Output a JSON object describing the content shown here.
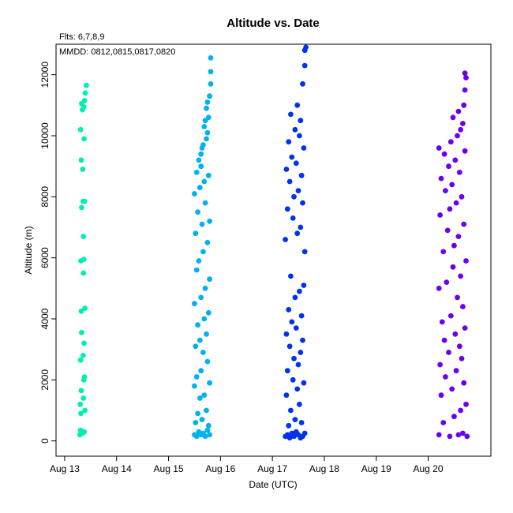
{
  "header": {
    "title": "Altitude  vs. Date",
    "flts_note": "Flts: 6,7,8,9",
    "mmdd_note": "MMDD: 0812,0815,0817,0820"
  },
  "chart_data": {
    "type": "scatter",
    "title": "Altitude  vs. Date",
    "xlabel": "Date (UTC)",
    "ylabel": "Altitude (m)",
    "xlim": [
      "2014-08-12T20:00",
      "2014-08-21T05:00"
    ],
    "ylim": [
      -500,
      13000
    ],
    "x_ticks": [
      "Aug 13",
      "Aug 14",
      "Aug 15",
      "Aug 16",
      "Aug 17",
      "Aug 18",
      "Aug 19",
      "Aug 20"
    ],
    "y_ticks": [
      0,
      2000,
      4000,
      6000,
      8000,
      10000,
      12000
    ],
    "grid": false,
    "series": [
      {
        "color": "#00eeb4",
        "points": [
          [
            "2014-08-13T07:00",
            200
          ],
          [
            "2014-08-13T07:20",
            350
          ],
          [
            "2014-08-13T08:10",
            250
          ],
          [
            "2014-08-13T09:00",
            300
          ],
          [
            "2014-08-13T07:30",
            900
          ],
          [
            "2014-08-13T07:10",
            1200
          ],
          [
            "2014-08-13T07:40",
            1650
          ],
          [
            "2014-08-13T08:40",
            1400
          ],
          [
            "2014-08-13T09:20",
            1000
          ],
          [
            "2014-08-13T08:50",
            2000
          ],
          [
            "2014-08-13T09:10",
            2100
          ],
          [
            "2014-08-13T07:20",
            2650
          ],
          [
            "2014-08-13T08:30",
            2800
          ],
          [
            "2014-08-13T09:00",
            3200
          ],
          [
            "2014-08-13T07:50",
            3550
          ],
          [
            "2014-08-13T07:40",
            4250
          ],
          [
            "2014-08-13T09:20",
            4350
          ],
          [
            "2014-08-13T08:40",
            5500
          ],
          [
            "2014-08-13T07:30",
            5900
          ],
          [
            "2014-08-13T08:50",
            5950
          ],
          [
            "2014-08-13T08:40",
            6700
          ],
          [
            "2014-08-13T07:50",
            7650
          ],
          [
            "2014-08-13T08:30",
            7850
          ],
          [
            "2014-08-13T09:10",
            7850
          ],
          [
            "2014-08-13T08:20",
            8900
          ],
          [
            "2014-08-13T07:40",
            9200
          ],
          [
            "2014-08-13T09:00",
            9900
          ],
          [
            "2014-08-13T07:20",
            10200
          ],
          [
            "2014-08-13T08:10",
            10850
          ],
          [
            "2014-08-13T08:50",
            10950
          ],
          [
            "2014-08-13T07:50",
            11050
          ],
          [
            "2014-08-13T09:30",
            11400
          ],
          [
            "2014-08-13T10:00",
            11650
          ],
          [
            "2014-08-13T09:10",
            11150
          ]
        ]
      },
      {
        "color": "#00b2ee",
        "points": [
          [
            "2014-08-15T12:00",
            200
          ],
          [
            "2014-08-15T13:00",
            150
          ],
          [
            "2014-08-15T14:00",
            300
          ],
          [
            "2014-08-15T15:00",
            200
          ],
          [
            "2014-08-15T16:00",
            250
          ],
          [
            "2014-08-15T17:00",
            150
          ],
          [
            "2014-08-15T18:00",
            350
          ],
          [
            "2014-08-15T19:00",
            200
          ],
          [
            "2014-08-15T12:30",
            600
          ],
          [
            "2014-08-15T15:30",
            700
          ],
          [
            "2014-08-15T18:30",
            500
          ],
          [
            "2014-08-15T13:30",
            900
          ],
          [
            "2014-08-15T17:30",
            1000
          ],
          [
            "2014-08-15T14:30",
            1400
          ],
          [
            "2014-08-15T16:30",
            1500
          ],
          [
            "2014-08-15T12:00",
            1800
          ],
          [
            "2014-08-15T19:00",
            1900
          ],
          [
            "2014-08-15T13:00",
            2100
          ],
          [
            "2014-08-15T15:00",
            2300
          ],
          [
            "2014-08-15T18:00",
            2600
          ],
          [
            "2014-08-15T16:00",
            2900
          ],
          [
            "2014-08-15T12:30",
            3100
          ],
          [
            "2014-08-15T14:30",
            3300
          ],
          [
            "2014-08-15T17:30",
            3500
          ],
          [
            "2014-08-15T13:30",
            3800
          ],
          [
            "2014-08-15T16:30",
            4000
          ],
          [
            "2014-08-15T18:30",
            4200
          ],
          [
            "2014-08-15T12:00",
            4500
          ],
          [
            "2014-08-15T15:00",
            4700
          ],
          [
            "2014-08-15T17:00",
            5000
          ],
          [
            "2014-08-15T19:00",
            5300
          ],
          [
            "2014-08-15T13:00",
            5600
          ],
          [
            "2014-08-15T14:00",
            5900
          ],
          [
            "2014-08-15T16:00",
            6200
          ],
          [
            "2014-08-15T18:00",
            6500
          ],
          [
            "2014-08-15T12:30",
            6800
          ],
          [
            "2014-08-15T15:30",
            7100
          ],
          [
            "2014-08-15T19:00",
            7200
          ],
          [
            "2014-08-15T13:30",
            7500
          ],
          [
            "2014-08-15T17:00",
            7800
          ],
          [
            "2014-08-15T12:00",
            8100
          ],
          [
            "2014-08-15T14:30",
            8300
          ],
          [
            "2014-08-15T16:30",
            8500
          ],
          [
            "2014-08-15T18:30",
            8700
          ],
          [
            "2014-08-15T13:00",
            8800
          ],
          [
            "2014-08-15T15:00",
            9000
          ],
          [
            "2014-08-15T14:00",
            9200
          ],
          [
            "2014-08-15T15:00",
            9400
          ],
          [
            "2014-08-15T15:30",
            9600
          ],
          [
            "2014-08-15T16:00",
            9700
          ],
          [
            "2014-08-15T17:30",
            9900
          ],
          [
            "2014-08-15T18:00",
            10100
          ],
          [
            "2014-08-15T16:30",
            10300
          ],
          [
            "2014-08-15T17:00",
            10500
          ],
          [
            "2014-08-15T18:30",
            10600
          ],
          [
            "2014-08-15T17:30",
            10900
          ],
          [
            "2014-08-15T18:00",
            11100
          ],
          [
            "2014-08-15T19:00",
            11300
          ],
          [
            "2014-08-15T19:30",
            11700
          ],
          [
            "2014-08-15T19:30",
            12100
          ],
          [
            "2014-08-15T19:30",
            12550
          ]
        ]
      },
      {
        "color": "#0033ee",
        "points": [
          [
            "2014-08-17T06:00",
            150
          ],
          [
            "2014-08-17T07:00",
            200
          ],
          [
            "2014-08-17T08:00",
            100
          ],
          [
            "2014-08-17T09:00",
            250
          ],
          [
            "2014-08-17T10:00",
            150
          ],
          [
            "2014-08-17T11:00",
            300
          ],
          [
            "2014-08-17T12:00",
            200
          ],
          [
            "2014-08-17T13:00",
            100
          ],
          [
            "2014-08-17T14:00",
            150
          ],
          [
            "2014-08-17T15:00",
            250
          ],
          [
            "2014-08-17T07:30",
            500
          ],
          [
            "2014-08-17T10:30",
            700
          ],
          [
            "2014-08-17T13:30",
            600
          ],
          [
            "2014-08-17T08:30",
            1000
          ],
          [
            "2014-08-17T12:30",
            1200
          ],
          [
            "2014-08-17T06:30",
            1500
          ],
          [
            "2014-08-17T11:30",
            1700
          ],
          [
            "2014-08-17T14:30",
            1900
          ],
          [
            "2014-08-17T09:30",
            2000
          ],
          [
            "2014-08-17T07:00",
            2300
          ],
          [
            "2014-08-17T12:00",
            2500
          ],
          [
            "2014-08-17T10:00",
            2700
          ],
          [
            "2014-08-17T13:00",
            2900
          ],
          [
            "2014-08-17T08:00",
            3100
          ],
          [
            "2014-08-17T14:00",
            3300
          ],
          [
            "2014-08-17T06:30",
            3500
          ],
          [
            "2014-08-17T11:00",
            3700
          ],
          [
            "2014-08-17T09:00",
            3900
          ],
          [
            "2014-08-17T13:30",
            4100
          ],
          [
            "2014-08-17T07:30",
            4300
          ],
          [
            "2014-08-17T10:30",
            4700
          ],
          [
            "2014-08-17T12:30",
            4900
          ],
          [
            "2014-08-17T14:30",
            5100
          ],
          [
            "2014-08-17T08:30",
            5400
          ],
          [
            "2014-08-17T15:00",
            6200
          ],
          [
            "2014-08-17T06:00",
            6600
          ],
          [
            "2014-08-17T11:30",
            6800
          ],
          [
            "2014-08-17T13:00",
            7000
          ],
          [
            "2014-08-17T09:30",
            7300
          ],
          [
            "2014-08-17T07:00",
            7600
          ],
          [
            "2014-08-17T14:00",
            7800
          ],
          [
            "2014-08-17T10:00",
            8000
          ],
          [
            "2014-08-17T12:00",
            8200
          ],
          [
            "2014-08-17T08:00",
            8500
          ],
          [
            "2014-08-17T13:30",
            8700
          ],
          [
            "2014-08-17T06:30",
            8900
          ],
          [
            "2014-08-17T11:00",
            9100
          ],
          [
            "2014-08-17T09:00",
            9300
          ],
          [
            "2014-08-17T14:30",
            9600
          ],
          [
            "2014-08-17T07:30",
            9800
          ],
          [
            "2014-08-17T12:30",
            10000
          ],
          [
            "2014-08-17T10:30",
            10200
          ],
          [
            "2014-08-17T13:00",
            10500
          ],
          [
            "2014-08-17T08:30",
            10700
          ],
          [
            "2014-08-17T11:30",
            11000
          ],
          [
            "2014-08-17T14:00",
            11700
          ],
          [
            "2014-08-17T15:00",
            12300
          ],
          [
            "2014-08-17T15:00",
            12800
          ],
          [
            "2014-08-17T15:30",
            12900
          ]
        ]
      },
      {
        "color": "#6b00ee",
        "points": [
          [
            "2014-08-20T05:00",
            200
          ],
          [
            "2014-08-20T10:00",
            150
          ],
          [
            "2014-08-20T14:00",
            200
          ],
          [
            "2014-08-20T16:00",
            250
          ],
          [
            "2014-08-20T18:00",
            150
          ],
          [
            "2014-08-20T07:00",
            600
          ],
          [
            "2014-08-20T12:00",
            800
          ],
          [
            "2014-08-20T15:00",
            1000
          ],
          [
            "2014-08-20T17:30",
            1200
          ],
          [
            "2014-08-20T06:00",
            1500
          ],
          [
            "2014-08-20T11:00",
            1700
          ],
          [
            "2014-08-20T16:30",
            1900
          ],
          [
            "2014-08-20T08:00",
            2100
          ],
          [
            "2014-08-20T13:00",
            2300
          ],
          [
            "2014-08-20T05:30",
            2500
          ],
          [
            "2014-08-20T15:30",
            2700
          ],
          [
            "2014-08-20T09:30",
            2900
          ],
          [
            "2014-08-20T14:30",
            3100
          ],
          [
            "2014-08-20T07:30",
            3300
          ],
          [
            "2014-08-20T12:30",
            3500
          ],
          [
            "2014-08-20T17:00",
            3700
          ],
          [
            "2014-08-20T06:30",
            3900
          ],
          [
            "2014-08-20T10:30",
            4100
          ],
          [
            "2014-08-20T16:00",
            4400
          ],
          [
            "2014-08-20T13:30",
            4700
          ],
          [
            "2014-08-20T05:00",
            5000
          ],
          [
            "2014-08-20T08:30",
            5200
          ],
          [
            "2014-08-20T15:00",
            5400
          ],
          [
            "2014-08-20T11:30",
            5700
          ],
          [
            "2014-08-20T17:30",
            5900
          ],
          [
            "2014-08-20T07:00",
            6200
          ],
          [
            "2014-08-20T12:00",
            6400
          ],
          [
            "2014-08-20T14:00",
            6700
          ],
          [
            "2014-08-20T09:00",
            6900
          ],
          [
            "2014-08-20T16:30",
            7100
          ],
          [
            "2014-08-20T05:30",
            7400
          ],
          [
            "2014-08-20T10:00",
            7600
          ],
          [
            "2014-08-20T13:00",
            7800
          ],
          [
            "2014-08-20T15:30",
            8000
          ],
          [
            "2014-08-20T08:00",
            8200
          ],
          [
            "2014-08-20T11:00",
            8400
          ],
          [
            "2014-08-20T06:00",
            8600
          ],
          [
            "2014-08-20T14:30",
            8800
          ],
          [
            "2014-08-20T09:30",
            9000
          ],
          [
            "2014-08-20T12:30",
            9200
          ],
          [
            "2014-08-20T07:30",
            9400
          ],
          [
            "2014-08-20T17:00",
            9500
          ],
          [
            "2014-08-20T05:00",
            9600
          ],
          [
            "2014-08-20T10:30",
            9800
          ],
          [
            "2014-08-20T13:30",
            10000
          ],
          [
            "2014-08-20T15:00",
            10200
          ],
          [
            "2014-08-20T16:00",
            10400
          ],
          [
            "2014-08-20T11:30",
            10600
          ],
          [
            "2014-08-20T14:00",
            10800
          ],
          [
            "2014-08-20T16:30",
            11000
          ],
          [
            "2014-08-20T17:00",
            11500
          ],
          [
            "2014-08-20T17:30",
            11900
          ],
          [
            "2014-08-20T17:00",
            12050
          ]
        ]
      }
    ]
  }
}
